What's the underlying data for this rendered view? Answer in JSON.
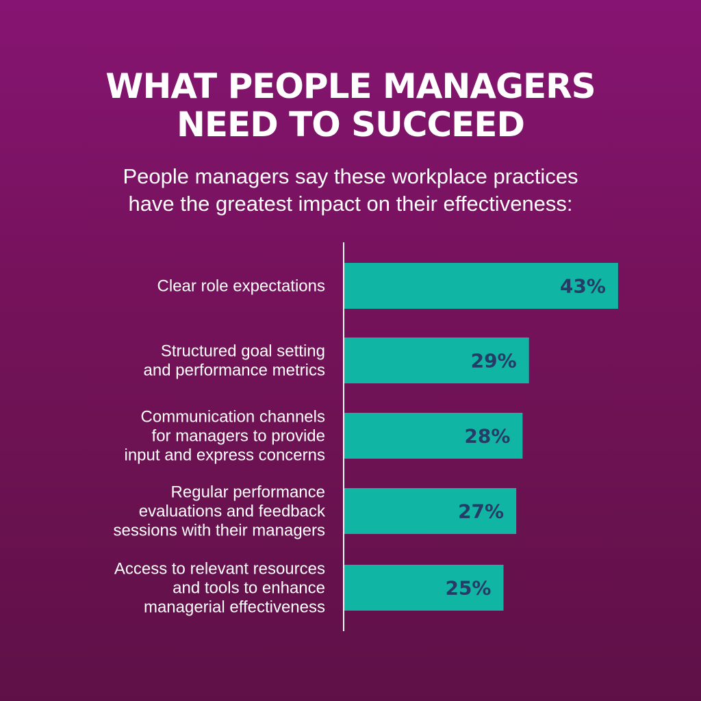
{
  "header": {
    "title_line1": "WHAT PEOPLE MANAGERS",
    "title_line2": "NEED TO SUCCEED",
    "subtitle_line1": "People managers say these workplace practices",
    "subtitle_line2": "have the greatest impact on their effectiveness:"
  },
  "colors": {
    "bar": "#10b5a4",
    "bar_label": "#263b66",
    "axis": "#ffffff"
  },
  "chart_data": {
    "type": "bar",
    "orientation": "horizontal",
    "categories": [
      [
        "Clear role expectations"
      ],
      [
        "Structured goal setting",
        "and performance metrics"
      ],
      [
        "Communication channels",
        "for managers to provide",
        "input and express concerns"
      ],
      [
        "Regular performance",
        "evaluations and feedback",
        "sessions with their managers"
      ],
      [
        "Access to relevant resources",
        "and tools to enhance",
        "managerial effectiveness"
      ]
    ],
    "values": [
      43,
      29,
      28,
      27,
      25
    ],
    "value_labels": [
      "43%",
      "29%",
      "28%",
      "27%",
      "25%"
    ],
    "unit": "%",
    "title": "WHAT PEOPLE MANAGERS NEED TO SUCCEED",
    "xlabel": "",
    "ylabel": "",
    "grid": false,
    "legend": "none"
  }
}
